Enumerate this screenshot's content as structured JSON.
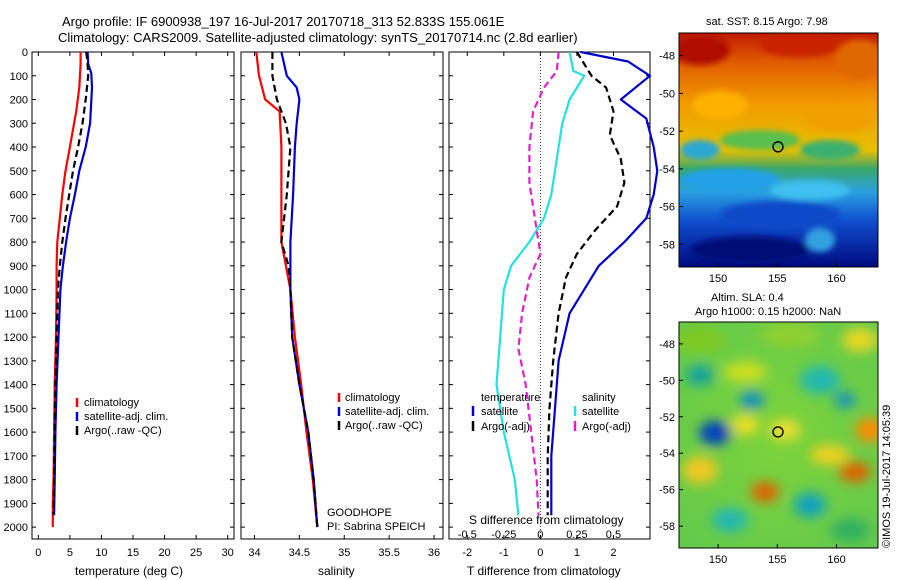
{
  "header": {
    "line1": "Argo profile: IF 6900938_197 16-Jul-2017 20170718_313 52.833S 155.061E",
    "line2": "Climatology: CARS2009. Satellite-adjusted climatology: synTS_20170714.nc (2.8d earlier)"
  },
  "colors": {
    "climatology": "#ff0000",
    "satellite": "#0000cc",
    "argo": "#000000",
    "sal_satellite": "#22e0e6",
    "sal_argo": "#e020d0"
  },
  "chart_data": [
    {
      "type": "line",
      "panel": "temperature",
      "xlabel": "temperature (deg C)",
      "ylim": [
        2050,
        0
      ],
      "xlim": [
        -1,
        31
      ],
      "xticks": [
        0,
        5,
        10,
        15,
        20,
        25,
        30
      ],
      "yticks": [
        0,
        100,
        200,
        300,
        400,
        500,
        600,
        700,
        800,
        900,
        1000,
        1100,
        1200,
        1300,
        1400,
        1500,
        1600,
        1700,
        1800,
        1900,
        2000
      ],
      "legend": [
        "climatology",
        "satellite-adj. clim.",
        "Argo(..raw -QC)"
      ],
      "series": [
        {
          "name": "climatology",
          "style": "solid",
          "color_key": "climatology",
          "points": [
            [
              6.7,
              0
            ],
            [
              6.7,
              50
            ],
            [
              6.5,
              150
            ],
            [
              6.0,
              250
            ],
            [
              5.0,
              400
            ],
            [
              4.3,
              500
            ],
            [
              3.8,
              600
            ],
            [
              3.4,
              700
            ],
            [
              3.0,
              800
            ],
            [
              2.9,
              900
            ],
            [
              2.9,
              1000
            ],
            [
              2.8,
              1200
            ],
            [
              2.6,
              1400
            ],
            [
              2.5,
              1600
            ],
            [
              2.4,
              1800
            ],
            [
              2.3,
              1900
            ],
            [
              2.3,
              2000
            ]
          ]
        },
        {
          "name": "satellite-adj. clim.",
          "style": "solid",
          "color_key": "satellite",
          "points": [
            [
              7.8,
              0
            ],
            [
              7.9,
              50
            ],
            [
              8.4,
              90
            ],
            [
              8.5,
              150
            ],
            [
              8.2,
              300
            ],
            [
              7.5,
              400
            ],
            [
              6.5,
              500
            ],
            [
              5.8,
              600
            ],
            [
              5.0,
              700
            ],
            [
              4.4,
              800
            ],
            [
              3.9,
              900
            ],
            [
              3.5,
              1000
            ],
            [
              3.2,
              1200
            ],
            [
              2.9,
              1400
            ],
            [
              2.7,
              1600
            ],
            [
              2.6,
              1800
            ],
            [
              2.5,
              1950
            ]
          ]
        },
        {
          "name": "Argo(..raw -QC)",
          "style": "dashed",
          "color_key": "argo",
          "points": [
            [
              7.6,
              0
            ],
            [
              7.8,
              50
            ],
            [
              7.9,
              100
            ],
            [
              7.5,
              200
            ],
            [
              7.0,
              300
            ],
            [
              6.3,
              400
            ],
            [
              5.5,
              500
            ],
            [
              4.9,
              600
            ],
            [
              4.3,
              700
            ],
            [
              3.8,
              800
            ],
            [
              3.4,
              900
            ],
            [
              3.1,
              1000
            ],
            [
              2.9,
              1200
            ],
            [
              2.7,
              1400
            ],
            [
              2.6,
              1600
            ],
            [
              2.5,
              1800
            ],
            [
              2.4,
              1950
            ]
          ]
        }
      ]
    },
    {
      "type": "line",
      "panel": "salinity",
      "xlabel": "salinity",
      "ylim": [
        2050,
        0
      ],
      "xlim": [
        33.85,
        36.1
      ],
      "xticks": [
        34,
        34.5,
        35,
        35.5,
        36
      ],
      "legend": [
        "climatology",
        "satellite-adj. clim.",
        "Argo(..raw -QC)"
      ],
      "annotation": [
        "GOODHOPE",
        "PI: Sabrina SPEICH"
      ],
      "series": [
        {
          "name": "climatology",
          "style": "solid",
          "color_key": "climatology",
          "points": [
            [
              34.02,
              0
            ],
            [
              34.05,
              100
            ],
            [
              34.12,
              200
            ],
            [
              34.28,
              250
            ],
            [
              34.3,
              400
            ],
            [
              34.3,
              600
            ],
            [
              34.3,
              800
            ],
            [
              34.35,
              900
            ],
            [
              34.4,
              1000
            ],
            [
              34.45,
              1200
            ],
            [
              34.52,
              1400
            ],
            [
              34.58,
              1600
            ],
            [
              34.65,
              1800
            ],
            [
              34.7,
              2000
            ]
          ]
        },
        {
          "name": "satellite-adj. clim.",
          "style": "solid",
          "color_key": "satellite",
          "points": [
            [
              34.3,
              0
            ],
            [
              34.36,
              100
            ],
            [
              34.47,
              150
            ],
            [
              34.5,
              200
            ],
            [
              34.47,
              300
            ],
            [
              34.45,
              400
            ],
            [
              34.43,
              600
            ],
            [
              34.4,
              800
            ],
            [
              34.4,
              900
            ],
            [
              34.4,
              1000
            ],
            [
              34.42,
              1200
            ],
            [
              34.5,
              1400
            ],
            [
              34.6,
              1600
            ],
            [
              34.66,
              1800
            ],
            [
              34.7,
              2000
            ]
          ]
        },
        {
          "name": "Argo(..raw -QC)",
          "style": "dashed",
          "color_key": "argo",
          "points": [
            [
              34.2,
              0
            ],
            [
              34.2,
              100
            ],
            [
              34.25,
              200
            ],
            [
              34.35,
              300
            ],
            [
              34.4,
              400
            ],
            [
              34.36,
              600
            ],
            [
              34.3,
              800
            ],
            [
              34.38,
              900
            ],
            [
              34.4,
              1000
            ],
            [
              34.42,
              1200
            ],
            [
              34.5,
              1400
            ],
            [
              34.6,
              1600
            ],
            [
              34.66,
              1800
            ],
            [
              34.7,
              2000
            ]
          ]
        }
      ]
    },
    {
      "type": "line",
      "panel": "difference",
      "xlabel": "T difference from climatology",
      "xlabel2": "S difference from climatology",
      "ylim": [
        2050,
        0
      ],
      "xlim": [
        -2.5,
        3.0
      ],
      "xticks": [
        -2,
        -1,
        0,
        1,
        2
      ],
      "s_xticks": [
        "-0.5",
        "-0.25",
        "0",
        "0.25",
        "0.5"
      ],
      "s_xtick_positions": [
        -2,
        -1,
        0,
        1,
        2
      ],
      "legend_headers": [
        "temperature",
        "salinity"
      ],
      "legend": [
        "satellite",
        "Argo(-adj)",
        "satellite",
        "Argo(-adj)"
      ],
      "series": [
        {
          "name": "T satellite",
          "style": "solid",
          "color_key": "satellite",
          "points": [
            [
              1.1,
              0
            ],
            [
              2.4,
              40
            ],
            [
              3.0,
              100
            ],
            [
              2.2,
              200
            ],
            [
              2.9,
              280
            ],
            [
              3.1,
              400
            ],
            [
              3.2,
              500
            ],
            [
              3.1,
              600
            ],
            [
              2.9,
              700
            ],
            [
              2.3,
              800
            ],
            [
              1.6,
              900
            ],
            [
              1.2,
              1000
            ],
            [
              0.8,
              1100
            ],
            [
              0.5,
              1300
            ],
            [
              0.4,
              1500
            ],
            [
              0.3,
              1700
            ],
            [
              0.3,
              1950
            ]
          ]
        },
        {
          "name": "T Argo(-adj)",
          "style": "dashed",
          "color_key": "argo",
          "points": [
            [
              1.0,
              0
            ],
            [
              1.4,
              100
            ],
            [
              1.8,
              150
            ],
            [
              2.0,
              250
            ],
            [
              1.9,
              350
            ],
            [
              2.2,
              450
            ],
            [
              2.3,
              550
            ],
            [
              2.1,
              650
            ],
            [
              1.5,
              750
            ],
            [
              1.0,
              850
            ],
            [
              0.7,
              950
            ],
            [
              0.5,
              1100
            ],
            [
              0.35,
              1300
            ],
            [
              0.25,
              1500
            ],
            [
              0.2,
              1700
            ],
            [
              0.2,
              1950
            ]
          ]
        },
        {
          "name": "S satellite",
          "style": "solid",
          "color_key": "sal_satellite",
          "points": [
            [
              0.8,
              0
            ],
            [
              0.9,
              80
            ],
            [
              1.2,
              100
            ],
            [
              0.8,
              200
            ],
            [
              0.6,
              300
            ],
            [
              0.5,
              400
            ],
            [
              0.4,
              500
            ],
            [
              0.3,
              600
            ],
            [
              0.1,
              700
            ],
            [
              -0.3,
              800
            ],
            [
              -0.8,
              900
            ],
            [
              -1.0,
              1000
            ],
            [
              -1.1,
              1200
            ],
            [
              -1.2,
              1400
            ],
            [
              -1.0,
              1600
            ],
            [
              -0.7,
              1800
            ],
            [
              -0.6,
              1950
            ]
          ]
        },
        {
          "name": "S Argo(-adj)",
          "style": "dashed",
          "color_key": "sal_argo",
          "points": [
            [
              0.5,
              0
            ],
            [
              0.45,
              80
            ],
            [
              0.1,
              150
            ],
            [
              -0.2,
              250
            ],
            [
              -0.3,
              400
            ],
            [
              -0.3,
              550
            ],
            [
              -0.15,
              700
            ],
            [
              0.0,
              850
            ],
            [
              -0.3,
              950
            ],
            [
              -0.5,
              1100
            ],
            [
              -0.6,
              1250
            ],
            [
              -0.4,
              1400
            ],
            [
              -0.25,
              1600
            ],
            [
              -0.1,
              1800
            ],
            [
              -0.05,
              1950
            ]
          ]
        }
      ]
    },
    {
      "type": "heatmap",
      "panel": "sst_map",
      "title": "sat. SST: 8.15  Argo: 7.98",
      "xticks": [
        "150",
        "155",
        "160"
      ],
      "yticks": [
        "-48",
        "-50",
        "-52",
        "-54",
        "-56",
        "-58"
      ],
      "xlim": [
        146.7,
        163.5
      ],
      "ylim": [
        -59.2,
        -46.8
      ],
      "argo_position": [
        155.06,
        -52.83
      ]
    },
    {
      "type": "heatmap",
      "panel": "sla_map",
      "title_line1": "Altim. SLA: 0.4",
      "title_line2": "Argo h1000: 0.15 h2000: NaN",
      "xticks": [
        "150",
        "155",
        "160"
      ],
      "yticks": [
        "-48",
        "-50",
        "-52",
        "-54",
        "-56",
        "-58"
      ],
      "xlim": [
        146.7,
        163.5
      ],
      "ylim": [
        -59.2,
        -46.8
      ],
      "argo_position": [
        155.06,
        -52.83
      ]
    }
  ],
  "credit": "©IMOS 19-Jul-2017 14:05:39"
}
